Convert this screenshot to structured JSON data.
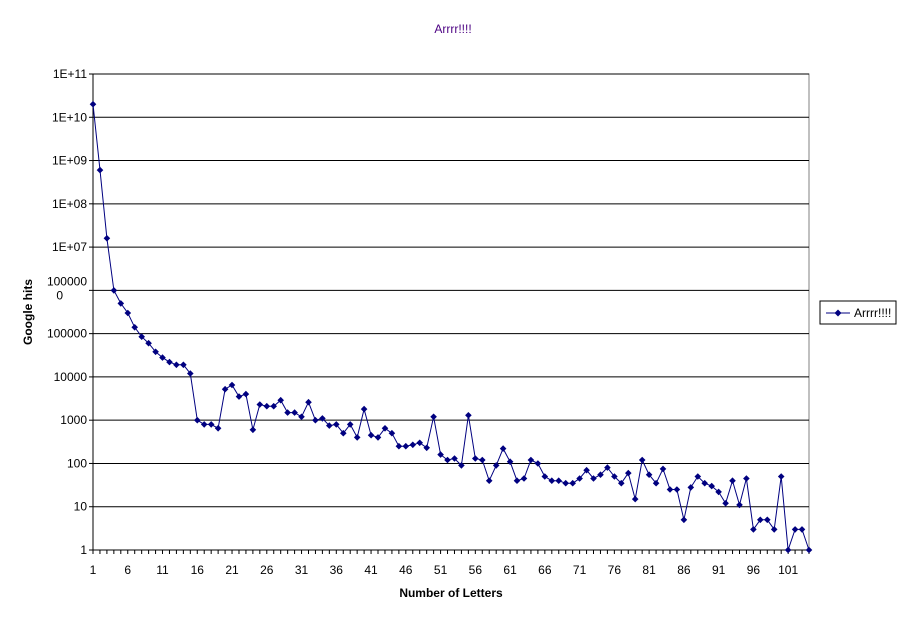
{
  "chart_data": {
    "type": "line",
    "title": "Arrrr!!!!",
    "xlabel": "Number of Letters",
    "ylabel": "Google hits",
    "y_scale": "log",
    "ylim": [
      1,
      100000000000
    ],
    "xlim": [
      1,
      104
    ],
    "grid": "horizontal",
    "legend_position": "right",
    "y_tick_labels": [
      "1",
      "10",
      "100",
      "1000",
      "10000",
      "100000",
      "100000\n0",
      "1E+07",
      "1E+08",
      "1E+09",
      "1E+10",
      "1E+11"
    ],
    "x_tick_labels": [
      "1",
      "6",
      "11",
      "16",
      "21",
      "26",
      "31",
      "36",
      "41",
      "46",
      "51",
      "56",
      "61",
      "66",
      "71",
      "76",
      "81",
      "86",
      "91",
      "96",
      "101"
    ],
    "line_color": "#000080",
    "plot_background": "#ffffff",
    "series": [
      {
        "name": "Arrrr!!!!",
        "x": [
          1,
          2,
          3,
          4,
          5,
          6,
          7,
          8,
          9,
          10,
          11,
          12,
          13,
          14,
          15,
          16,
          17,
          18,
          19,
          20,
          21,
          22,
          23,
          24,
          25,
          26,
          27,
          28,
          29,
          30,
          31,
          32,
          33,
          34,
          35,
          36,
          37,
          38,
          39,
          40,
          41,
          42,
          43,
          44,
          45,
          46,
          47,
          48,
          49,
          50,
          51,
          52,
          53,
          54,
          55,
          56,
          57,
          58,
          59,
          60,
          61,
          62,
          63,
          64,
          65,
          66,
          67,
          68,
          69,
          70,
          71,
          72,
          73,
          74,
          75,
          76,
          77,
          78,
          79,
          80,
          81,
          82,
          83,
          84,
          85,
          86,
          87,
          88,
          89,
          90,
          91,
          92,
          93,
          94,
          95,
          96,
          97,
          98,
          99,
          100,
          101,
          102,
          103,
          104
        ],
        "values": [
          20000000000,
          600000000,
          16000000,
          1000000,
          500000,
          300000,
          140000,
          85000,
          60000,
          38000,
          28000,
          22000,
          19000,
          19000,
          12000,
          1000,
          800,
          800,
          650,
          5200,
          6500,
          3500,
          4000,
          600,
          2300,
          2100,
          2100,
          2900,
          1500,
          1500,
          1200,
          2600,
          1000,
          1100,
          750,
          800,
          500,
          800,
          400,
          1800,
          450,
          400,
          650,
          500,
          250,
          250,
          270,
          300,
          230,
          1200,
          160,
          120,
          130,
          90,
          1300,
          130,
          120,
          40,
          90,
          220,
          110,
          40,
          45,
          120,
          100,
          50,
          40,
          40,
          35,
          35,
          45,
          70,
          45,
          55,
          80,
          50,
          35,
          60,
          15,
          120,
          55,
          35,
          75,
          25,
          25,
          5,
          28,
          50,
          35,
          30,
          22,
          12,
          40,
          11,
          45,
          3,
          5,
          5,
          3,
          50,
          1,
          3,
          3,
          1
        ]
      }
    ]
  }
}
